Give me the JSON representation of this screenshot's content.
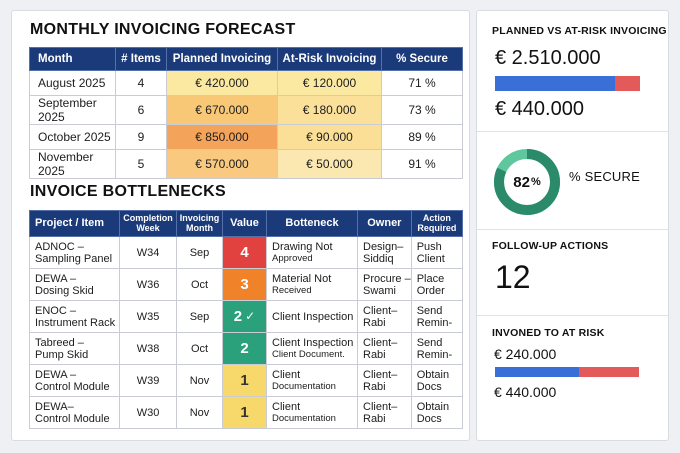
{
  "forecast": {
    "title": "MONTHLY INVOICING FORECAST",
    "headers": [
      "Month",
      "# Items",
      "Planned Invoicing",
      "At-Risk Invoicing",
      "% Secure"
    ],
    "rows": [
      {
        "month": "August 2025",
        "items": "4",
        "planned": "€ 420.000",
        "risk": "€ 120.000",
        "secure": "71 %",
        "planned_color": "#fbe9a2",
        "risk_color": "#fbe9a2"
      },
      {
        "month": "September 2025",
        "items": "6",
        "planned": "€ 670.000",
        "risk": "€ 180.000",
        "secure": "73 %",
        "planned_color": "#f8c877",
        "risk_color": "#fbe09a"
      },
      {
        "month": "October 2025",
        "items": "9",
        "planned": "€ 850.000",
        "risk": "€ 90.000",
        "secure": "89 %",
        "planned_color": "#f3a35a",
        "risk_color": "#fbdf96"
      },
      {
        "month": "November 2025",
        "items": "5",
        "planned": "€ 570.000",
        "risk": "€ 50.000",
        "secure": "91 %",
        "planned_color": "#f8c97e",
        "risk_color": "#fbe7b0"
      }
    ]
  },
  "bottlenecks": {
    "title": "INVOICE BOTTLENECKS",
    "headers": {
      "project": "Project / Item",
      "week": "Completion Week",
      "month": "Invoicing Month",
      "value": "Value",
      "issue": "Botteneck",
      "owner": "Owner",
      "action": "Action Required"
    },
    "rows": [
      {
        "project_1": "ADNOC –",
        "project_2": "Sampling Panel",
        "week": "W34",
        "month": "Sep",
        "value": "4",
        "value_class": "val-red",
        "check": "",
        "issue_1": "Drawing Not",
        "issue_2": "Approved",
        "owner_1": "Design–",
        "owner_2": "Siddiq",
        "action_1": "Push",
        "action_2": "Client"
      },
      {
        "project_1": "DEWA –",
        "project_2": "Dosing Skid",
        "week": "W36",
        "month": "Oct",
        "value": "3",
        "value_class": "val-orange",
        "check": "",
        "issue_1": "Material Not",
        "issue_2": "Received",
        "owner_1": "Procure –",
        "owner_2": "Swami",
        "action_1": "Place",
        "action_2": "Order"
      },
      {
        "project_1": "ENOC –",
        "project_2": "Instrument Rack",
        "week": "W35",
        "month": "Sep",
        "value": "2",
        "value_class": "val-green",
        "check": "✓",
        "issue_1": "Client Inspection",
        "issue_2": "",
        "owner_1": "Client–",
        "owner_2": "Rabi",
        "action_1": "Send",
        "action_2": "Remin-"
      },
      {
        "project_1": "Tabreed –",
        "project_2": "Pump Skid",
        "week": "W38",
        "month": "Oct",
        "value": "2",
        "value_class": "val-green",
        "check": "",
        "issue_1": "Client Inspection",
        "issue_2": "Client Document.",
        "owner_1": "Client–",
        "owner_2": "Rabi",
        "action_1": "Send",
        "action_2": "Remin-"
      },
      {
        "project_1": "DEWA –",
        "project_2": "Control Module",
        "week": "W39",
        "month": "Nov",
        "value": "1",
        "value_class": "val-yellow",
        "check": "",
        "issue_1": "Client",
        "issue_2": "Documentation",
        "owner_1": "Client–",
        "owner_2": "Rabi",
        "action_1": "Obtain",
        "action_2": "Docs"
      },
      {
        "project_1": "DEWA–",
        "project_2": "Control Module",
        "week": "W30",
        "month": "Nov",
        "value": "1",
        "value_class": "val-yellow",
        "check": "",
        "issue_1": "Client",
        "issue_2": "Documentation",
        "owner_1": "Client–",
        "owner_2": "Rabi",
        "action_1": "Obtain",
        "action_2": "Docs"
      }
    ]
  },
  "summary": {
    "planned_vs_risk_label": "PLANNED VS AT-RISK INVOICING",
    "planned_total": "€ 2.510.000",
    "risk_total": "€ 440.000",
    "bar1_planned_fraction": 0.83,
    "secure_value": "82",
    "secure_pct_sign": "%",
    "secure_fraction": 0.82,
    "secure_label": "% SECURE",
    "followup_label": "FOLLOW-UP ACTIONS",
    "followup_count": "12",
    "invoiced_label": "INVONED TO AT RISK",
    "invoiced_value": "€ 240.000",
    "invoiced_risk": "€ 440.000",
    "bar2_invoiced_fraction": 0.58,
    "colors": {
      "blue": "#3b6fd8",
      "red": "#e35a5a",
      "teal": "#2a8a6a",
      "teal_light": "#5fc79d"
    }
  }
}
